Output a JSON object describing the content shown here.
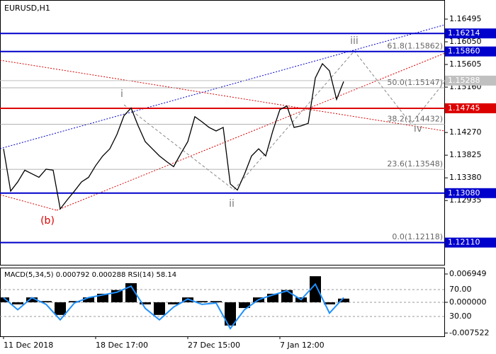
{
  "chart_data": {
    "type": "line",
    "title": "EURUSD,H1",
    "categories": [
      "11 Dec 2018",
      null,
      null,
      null,
      null,
      null,
      null,
      null,
      null,
      null,
      null,
      null,
      null,
      "18 Dec 17:00",
      null,
      null,
      null,
      null,
      null,
      null,
      null,
      null,
      null,
      null,
      null,
      null,
      "27 Dec 15:00",
      null,
      null,
      null,
      null,
      null,
      null,
      null,
      null,
      null,
      null,
      null,
      null,
      "7 Jan 12:00",
      null,
      null,
      null,
      null,
      null,
      null,
      null,
      null,
      null
    ],
    "values": [
      1.1395,
      1.1312,
      1.133,
      1.1353,
      1.1346,
      1.1339,
      1.1355,
      1.1353,
      1.1277,
      1.1295,
      1.1312,
      1.133,
      1.1339,
      1.1362,
      1.1381,
      1.1395,
      1.1423,
      1.146,
      1.1475,
      1.144,
      1.1409,
      1.1395,
      1.1381,
      1.137,
      1.136,
      1.1385,
      1.1409,
      1.1458,
      1.1448,
      1.1437,
      1.143,
      1.1437,
      1.1326,
      1.1314,
      1.1345,
      1.1381,
      1.1395,
      1.1381,
      1.143,
      1.1472,
      1.1479,
      1.1437,
      1.144,
      1.1445,
      1.1534,
      1.1562,
      1.1548,
      1.1492,
      1.1527
    ],
    "color": "#000000",
    "ylim": [
      1.1166,
      1.1687
    ],
    "yticks": [
      1.16495,
      {
        "value": 1.1605,
        "label": "1.16050"
      },
      1.15605,
      {
        "value": 1.1516,
        "label": "1.15160"
      },
      {
        "value": 1.1427,
        "label": "1.14270"
      },
      1.13825,
      {
        "value": 1.1338,
        "label": "1.13380"
      },
      1.12935
    ],
    "levels": [
      {
        "value": 1.16214,
        "color": "#0000cc"
      },
      {
        "value": 1.1586,
        "label": "1.15860",
        "color": "#0000cc"
      },
      {
        "value": 1.15288,
        "color": "#c0c0c0"
      },
      {
        "value": 1.14745,
        "color": "#dd0000"
      },
      {
        "value": 1.1308,
        "label": "1.13080",
        "color": "#0000cc"
      },
      {
        "value": 1.1211,
        "label": "1.12110",
        "color": "#0000cc"
      }
    ],
    "fib": [
      {
        "label": "61.8(1.15862)",
        "value": 1.15862
      },
      {
        "label": "50.0(1.15147)",
        "value": 1.15147
      },
      {
        "label": "38.2(1.14432)",
        "value": 1.14432
      },
      {
        "label": "23.6(1.13548)",
        "value": 1.13548
      },
      {
        "label": "0.0(1.12118)",
        "value": 1.12118
      }
    ],
    "waves": [
      "i",
      "ii",
      "iii",
      "iv",
      "(b)"
    ],
    "indicator": {
      "title": "MACD(5,34,5) 0.000792 0.000288 RSI(14) 58.14",
      "macd": {
        "color": "#000000",
        "ylim": [
          -0.00834,
          0.00851
        ],
        "yticks": [
          0.006949,
          {
            "value": 0,
            "label": "0.000000"
          },
          -0.007522
        ],
        "values": [
          0.0012,
          -0.0005,
          0.0012,
          0.0003,
          -0.0031,
          0.0003,
          0.0012,
          0.0021,
          0.003,
          0.0047,
          -0.0005,
          -0.0031,
          -0.0005,
          0.0012,
          0.0003,
          0.0003,
          -0.0057,
          -0.0014,
          0.0012,
          0.0021,
          0.003,
          0.0012,
          0.0064,
          -0.0005,
          0.0009
        ]
      },
      "rsi": {
        "color": "#1e90ff",
        "ylim": [
          0.5,
          102.6
        ],
        "yticks": [
          {
            "value": 70,
            "label": "70.00"
          },
          {
            "value": 30,
            "label": "30.00"
          }
        ],
        "values": [
          58,
          40,
          58,
          48,
          25,
          50,
          58,
          62,
          66,
          75,
          42,
          25,
          44,
          56,
          48,
          50,
          12,
          40,
          55,
          62,
          68,
          55,
          78,
          35,
          58
        ]
      }
    }
  }
}
